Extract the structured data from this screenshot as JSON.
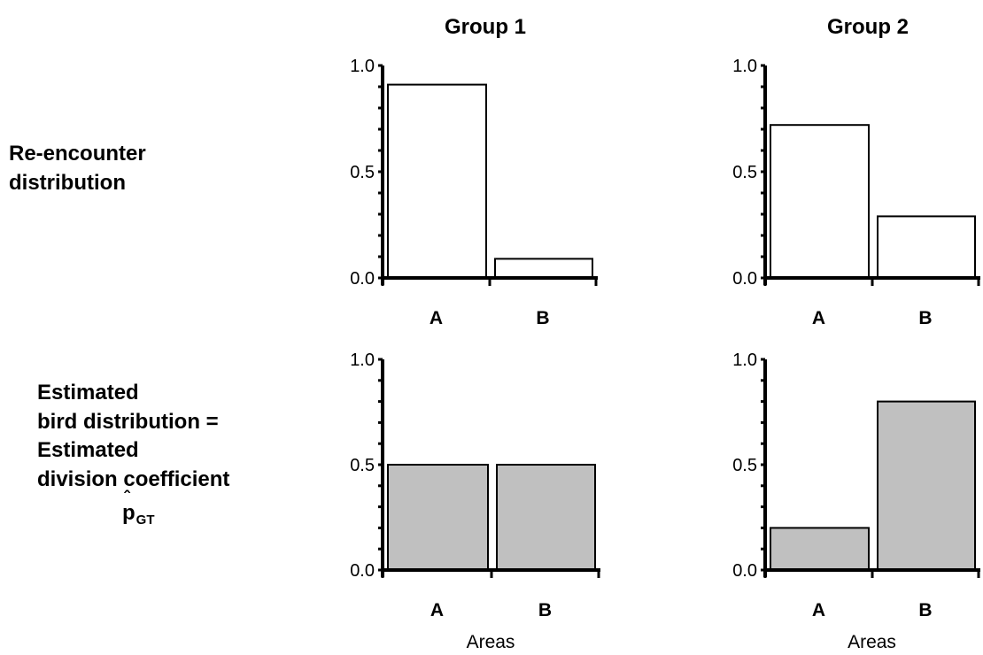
{
  "groups": [
    "Group 1",
    "Group 2"
  ],
  "rows": [
    {
      "label": [
        "Re-encounter",
        "distribution"
      ]
    },
    {
      "label": [
        "Estimated",
        "bird distribution =",
        "Estimated",
        "division coefficient"
      ],
      "symbol": {
        "base": "p",
        "hat": "ˆ",
        "subscript": "GT"
      }
    }
  ],
  "chart_data": [
    {
      "type": "bar",
      "group": "Group 1",
      "row": "Re-encounter distribution",
      "categories": [
        "A",
        "B"
      ],
      "values": [
        0.91,
        0.09
      ],
      "ylim": [
        0,
        1
      ],
      "yticks": [
        "0.0",
        "0.5",
        "1.0"
      ],
      "xlabel": "",
      "bar_color": "#ffffff"
    },
    {
      "type": "bar",
      "group": "Group 2",
      "row": "Re-encounter distribution",
      "categories": [
        "A",
        "B"
      ],
      "values": [
        0.72,
        0.29
      ],
      "ylim": [
        0,
        1
      ],
      "yticks": [
        "0.0",
        "0.5",
        "1.0"
      ],
      "xlabel": "",
      "bar_color": "#ffffff"
    },
    {
      "type": "bar",
      "group": "Group 1",
      "row": "Estimated bird distribution",
      "categories": [
        "A",
        "B"
      ],
      "values": [
        0.5,
        0.5
      ],
      "ylim": [
        0,
        1
      ],
      "yticks": [
        "0.0",
        "0.5",
        "1.0"
      ],
      "xlabel": "Areas",
      "bar_color": "#c0c0c0"
    },
    {
      "type": "bar",
      "group": "Group 2",
      "row": "Estimated bird distribution",
      "categories": [
        "A",
        "B"
      ],
      "values": [
        0.2,
        0.8
      ],
      "ylim": [
        0,
        1
      ],
      "yticks": [
        "0.0",
        "0.5",
        "1.0"
      ],
      "xlabel": "Areas",
      "bar_color": "#c0c0c0"
    }
  ]
}
